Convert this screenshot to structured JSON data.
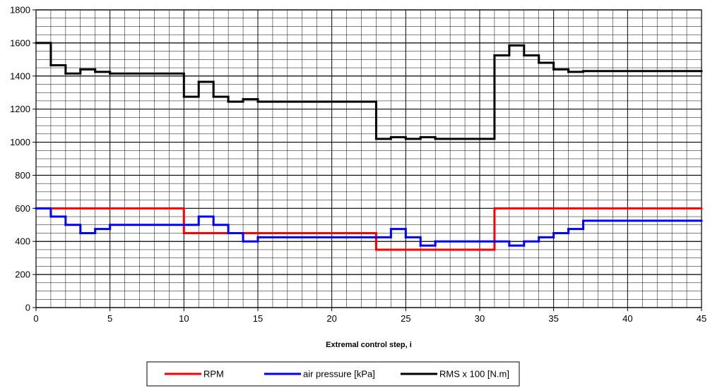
{
  "chart_data": {
    "type": "line",
    "title": "",
    "xlabel": "Extremal control step, i",
    "ylabel": "",
    "xlim": [
      0,
      45
    ],
    "ylim": [
      0,
      1800
    ],
    "x_ticks": [
      0,
      5,
      10,
      15,
      20,
      25,
      30,
      35,
      40,
      45
    ],
    "y_ticks": [
      0,
      200,
      400,
      600,
      800,
      1000,
      1200,
      1400,
      1600,
      1800
    ],
    "grid": true,
    "minor_grid": true,
    "legend_position": "bottom",
    "series": [
      {
        "name": "RPM",
        "color": "#ff0000",
        "step": true,
        "x": [
          0,
          10,
          13,
          23,
          31,
          45
        ],
        "y": [
          600,
          450,
          450,
          350,
          600,
          600
        ]
      },
      {
        "name": "air pressure [kPa]",
        "color": "#0000ff",
        "step": true,
        "x": [
          0,
          1,
          2,
          3,
          4,
          5,
          10,
          11,
          12,
          13,
          14,
          15,
          24,
          25,
          26,
          27,
          32,
          33,
          34,
          35,
          36,
          37,
          45
        ],
        "y": [
          600,
          550,
          500,
          450,
          475,
          500,
          500,
          550,
          500,
          450,
          400,
          425,
          475,
          425,
          375,
          400,
          375,
          400,
          425,
          450,
          475,
          525,
          525
        ]
      },
      {
        "name": "RMS x 100 [N.m]",
        "color": "#000000",
        "step": true,
        "x": [
          0,
          1,
          2,
          3,
          4,
          5,
          10,
          11,
          12,
          13,
          14,
          15,
          23,
          24,
          25,
          26,
          27,
          31,
          32,
          33,
          34,
          35,
          36,
          37,
          45
        ],
        "y": [
          1600,
          1465,
          1415,
          1440,
          1425,
          1415,
          1275,
          1365,
          1275,
          1245,
          1260,
          1245,
          1020,
          1030,
          1020,
          1030,
          1020,
          1525,
          1585,
          1525,
          1480,
          1440,
          1425,
          1430,
          1430
        ]
      }
    ]
  }
}
